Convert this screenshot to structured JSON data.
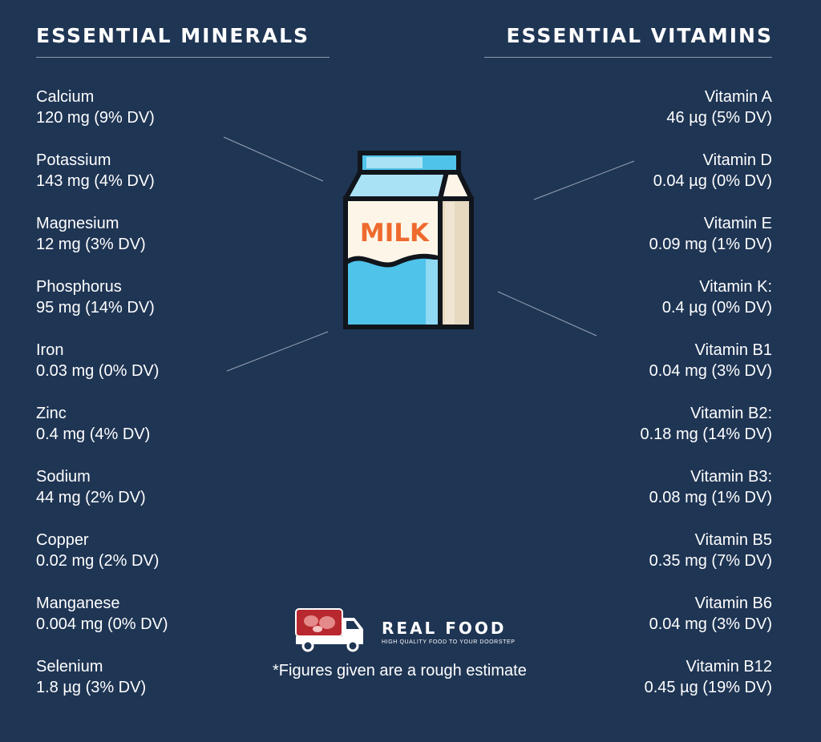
{
  "minerals": {
    "heading": "ESSENTIAL MINERALS",
    "items": [
      {
        "name": "Calcium",
        "value": "120 mg (9% DV)"
      },
      {
        "name": "Potassium",
        "value": "143 mg (4% DV)"
      },
      {
        "name": "Magnesium",
        "value": "12 mg (3% DV)"
      },
      {
        "name": "Phosphorus",
        "value": "95 mg (14% DV)"
      },
      {
        "name": "Iron",
        "value": "0.03 mg (0% DV)"
      },
      {
        "name": "Zinc",
        "value": "0.4 mg (4% DV)"
      },
      {
        "name": "Sodium",
        "value": "44 mg (2% DV)"
      },
      {
        "name": "Copper",
        "value": "0.02 mg (2% DV)"
      },
      {
        "name": "Manganese",
        "value": "0.004 mg (0% DV)"
      },
      {
        "name": "Selenium",
        "value": "1.8 µg (3% DV)"
      }
    ]
  },
  "vitamins": {
    "heading": "ESSENTIAL VITAMINS",
    "items": [
      {
        "name": "Vitamin A",
        "value": "46 µg (5% DV)"
      },
      {
        "name": "Vitamin D",
        "value": "0.04 µg (0% DV)"
      },
      {
        "name": "Vitamin E",
        "value": "0.09 mg (1% DV)"
      },
      {
        "name": "Vitamin K:",
        "value": "0.4 µg (0% DV)"
      },
      {
        "name": "Vitamin B1",
        "value": "0.04 mg (3% DV)"
      },
      {
        "name": "Vitamin B2:",
        "value": "0.18 mg (14% DV)"
      },
      {
        "name": "Vitamin B3:",
        "value": "0.08 mg (1% DV)"
      },
      {
        "name": "Vitamin B5",
        "value": "0.35 mg (7% DV)"
      },
      {
        "name": "Vitamin B6",
        "value": "0.04 mg (3% DV)"
      },
      {
        "name": "Vitamin B12",
        "value": "0.45 µg (19% DV)"
      }
    ]
  },
  "carton": {
    "label": "MILK",
    "icon": "milk-carton-icon"
  },
  "brand": {
    "name": "REAL FOOD",
    "tagline": "HIGH QUALITY FOOD TO YOUR DOORSTEP",
    "icon": "delivery-truck-icon"
  },
  "footnote": "*Figures given are a rough estimate",
  "colors": {
    "background": "#1f3554",
    "carton_blue": "#4fc3ea",
    "carton_light": "#a9e2f5",
    "carton_cream": "#fdf6e8",
    "carton_side": "#e6d9c0",
    "milk_text": "#ee6a2e",
    "logo_meat": "#b8282f",
    "outline": "#11151c"
  }
}
